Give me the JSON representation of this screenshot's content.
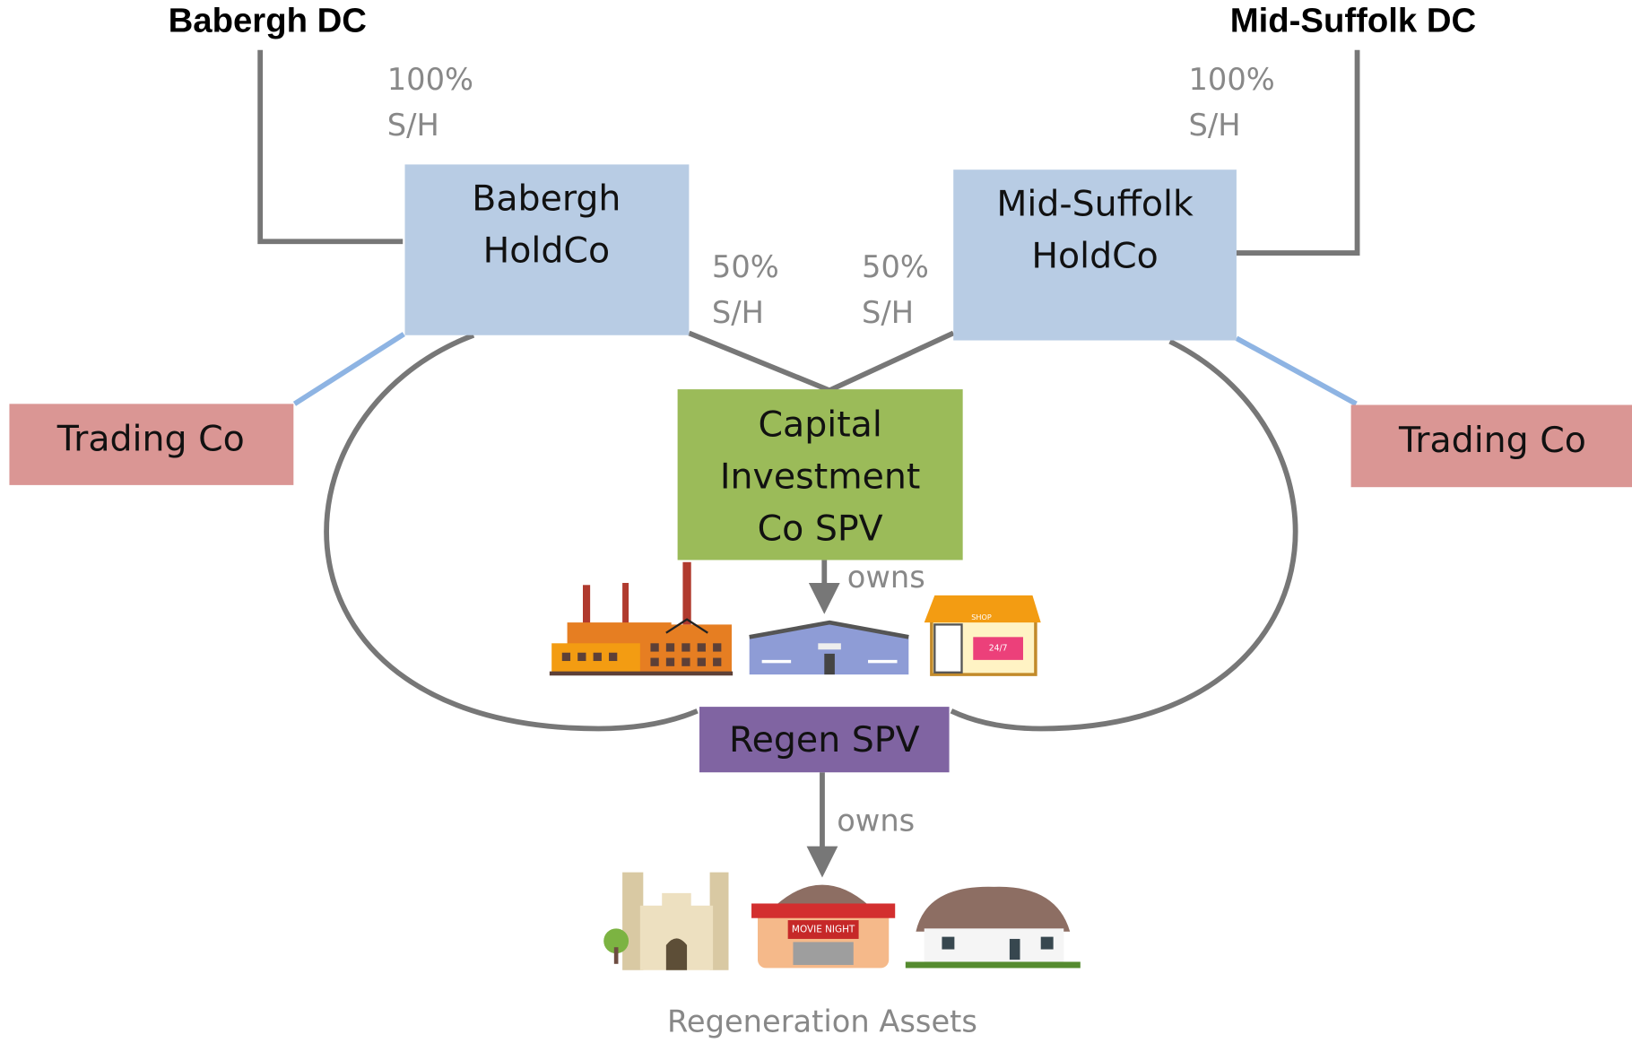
{
  "councils": [
    {
      "name": "Babergh DC",
      "share": [
        "100%",
        "S/H"
      ]
    },
    {
      "name": "Mid-Suffolk DC",
      "share": [
        "100%",
        "S/H"
      ]
    }
  ],
  "holdcos": [
    {
      "label": [
        "Babergh",
        "HoldCo"
      ],
      "share": [
        "50%",
        "S/H"
      ]
    },
    {
      "label": [
        "Mid-Suffolk",
        "HoldCo"
      ],
      "share": [
        "50%",
        "S/H"
      ]
    }
  ],
  "trading_cos": [
    "Trading Co",
    "Trading Co"
  ],
  "capital_spv": {
    "label": [
      "Capital",
      "Investment",
      "Co SPV"
    ],
    "relation": "owns",
    "asset_signs": [
      "SHOP",
      "24/7"
    ]
  },
  "regen_spv": {
    "label": "Regen SPV",
    "relation": "owns",
    "asset_signs": [
      "MOVIE NIGHT"
    ],
    "caption": "Regeneration Assets"
  }
}
